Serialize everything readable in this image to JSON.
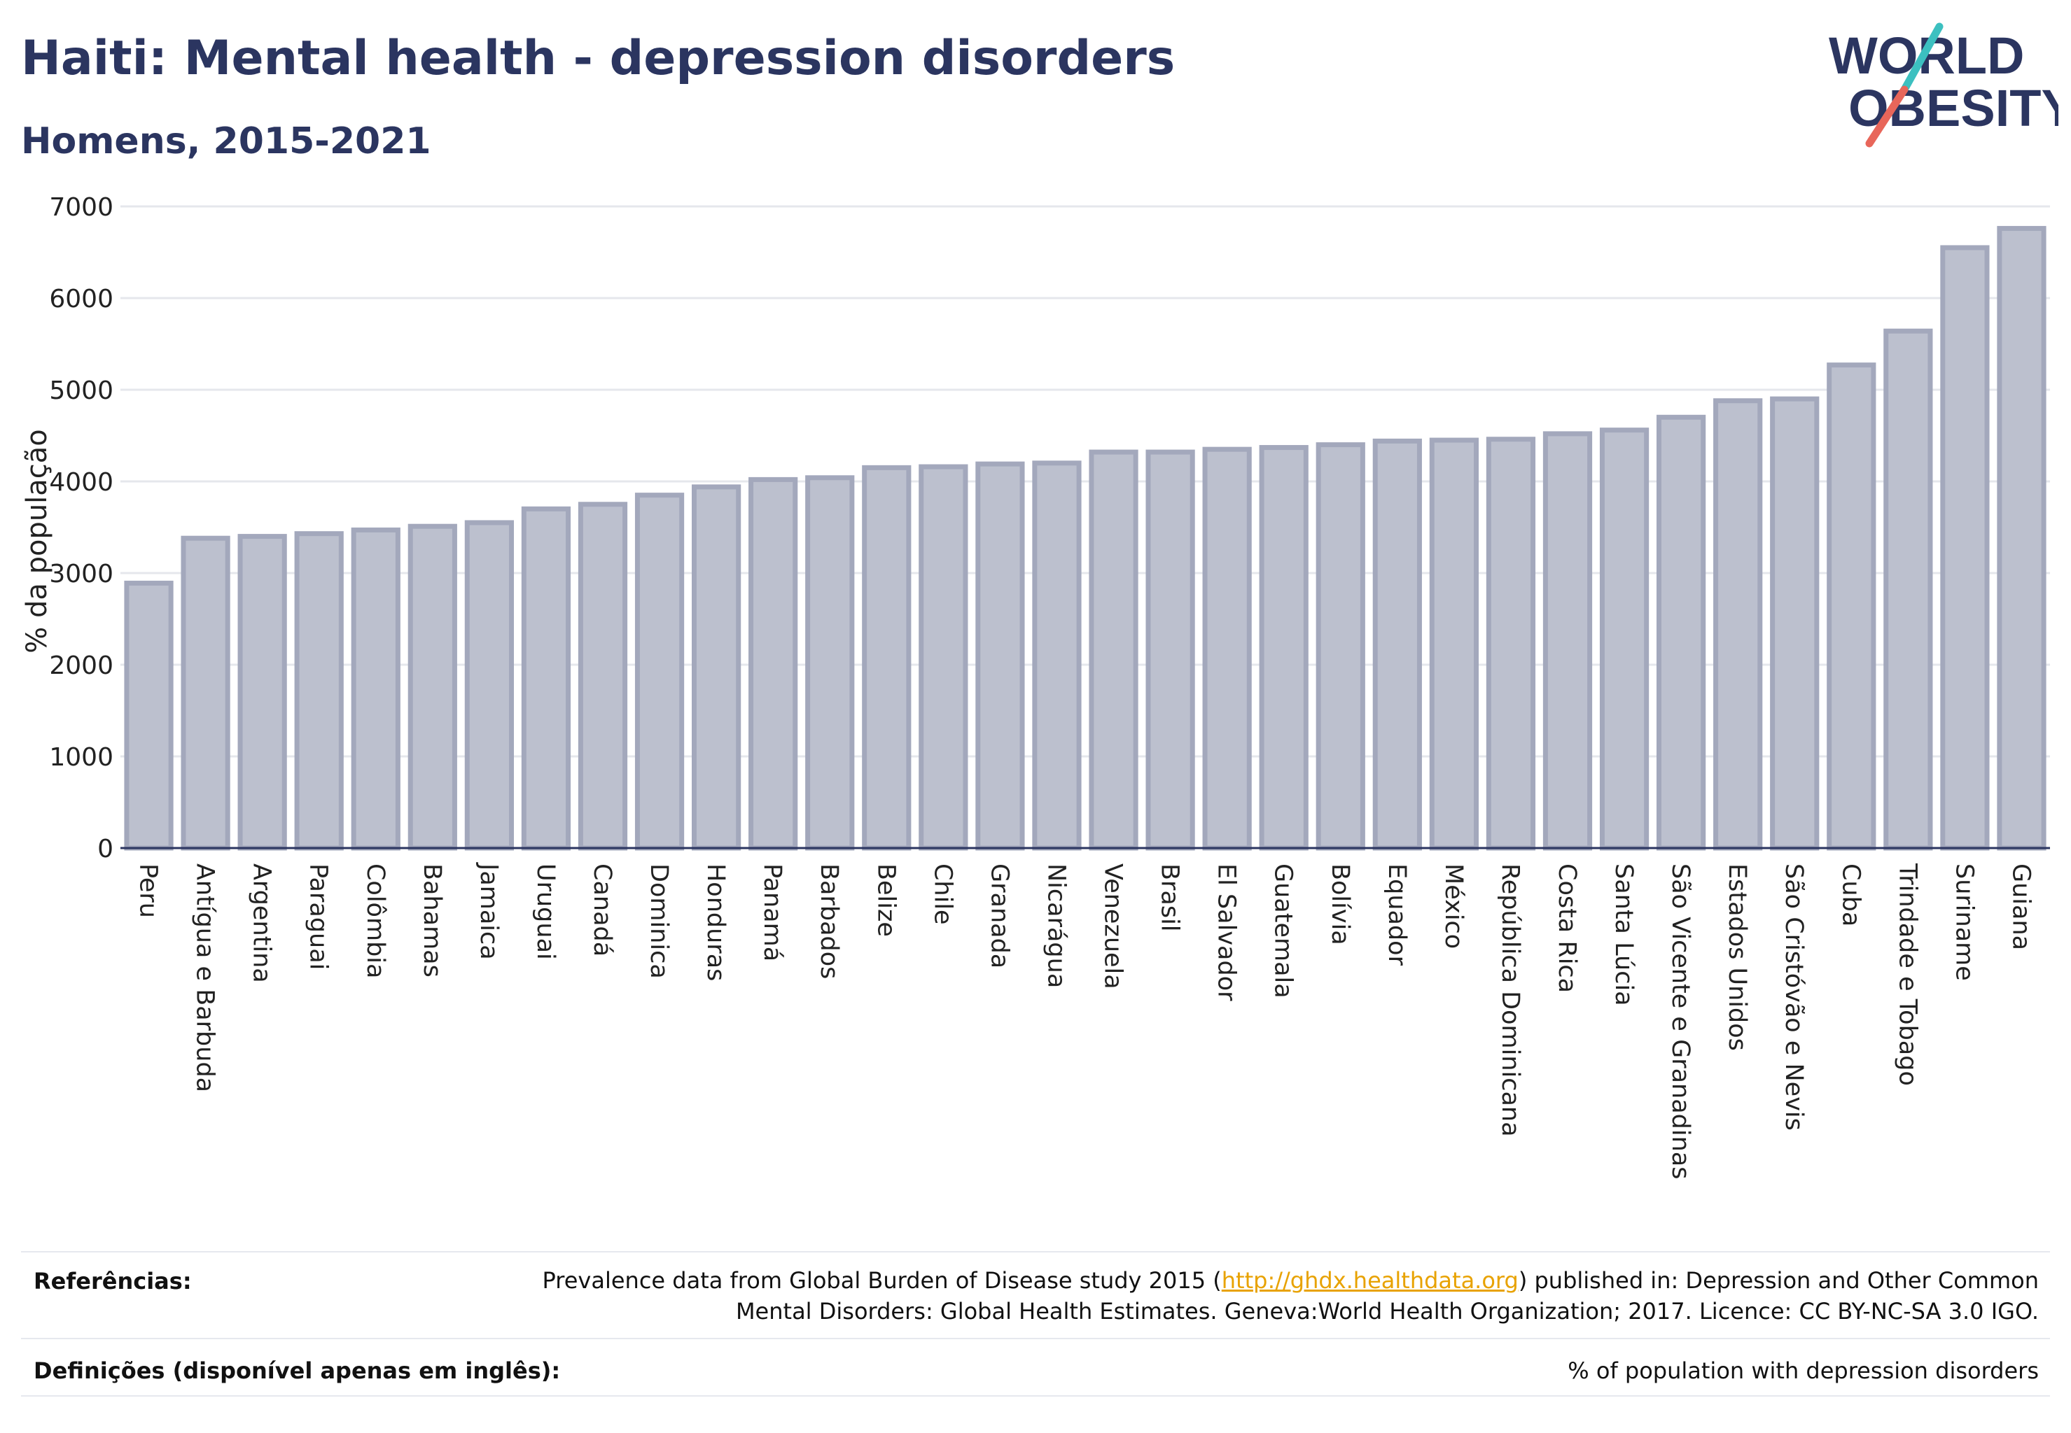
{
  "header": {
    "title": "Haiti: Mental health - depression disorders",
    "subtitle": "Homens, 2015-2021",
    "logo_line1": "WORLD",
    "logo_line2": "OBESITY"
  },
  "chart_data": {
    "type": "bar",
    "title": "Haiti: Mental health - depression disorders",
    "subtitle": "Homens, 2015-2021",
    "xlabel": "",
    "ylabel": "% da população",
    "ylim": [
      0,
      7000
    ],
    "yticks": [
      0,
      1000,
      2000,
      3000,
      4000,
      5000,
      6000,
      7000
    ],
    "grid": true,
    "bar_color": "#bcc0ce",
    "bar_edge_color": "#a3a8bc",
    "categories": [
      "Peru",
      "Antígua e Barbuda",
      "Argentina",
      "Paraguai",
      "Colômbia",
      "Bahamas",
      "Jamaica",
      "Uruguai",
      "Canadá",
      "Dominica",
      "Honduras",
      "Panamá",
      "Barbados",
      "Belize",
      "Chile",
      "Granada",
      "Nicarágua",
      "Venezuela",
      "Brasil",
      "El Salvador",
      "Guatemala",
      "Bolívia",
      "Equador",
      "México",
      "República Dominicana",
      "Costa Rica",
      "Santa Lúcia",
      "São Vicente e Granadinas",
      "Estados Unidos",
      "São Cristóvão e Nevis",
      "Cuba",
      "Trindade e Tobago",
      "Suriname",
      "Guiana"
    ],
    "values": [
      2890,
      3380,
      3400,
      3430,
      3470,
      3510,
      3550,
      3700,
      3750,
      3850,
      3940,
      4020,
      4040,
      4150,
      4160,
      4190,
      4200,
      4320,
      4320,
      4350,
      4370,
      4400,
      4440,
      4450,
      4460,
      4520,
      4560,
      4700,
      4880,
      4900,
      5270,
      5640,
      6550,
      6760
    ]
  },
  "footer": {
    "references_label": "Referências:",
    "references_text_before": "Prevalence data from Global Burden of Disease study 2015 (",
    "references_link": "http://ghdx.healthdata.org",
    "references_text_after": ") published in: Depression and Other Common Mental Disorders: Global Health Estimates. Geneva:World Health Organization; 2017. Licence: CC BY-NC-SA 3.0 IGO.",
    "definitions_label": "Definições (disponível apenas em inglês):",
    "definitions_text": "% of population with depression disorders"
  },
  "colors": {
    "title": "#2b3560",
    "logo_accent_teal": "#3cc0c0",
    "logo_accent_red": "#e8665a",
    "link": "#e8a200"
  }
}
